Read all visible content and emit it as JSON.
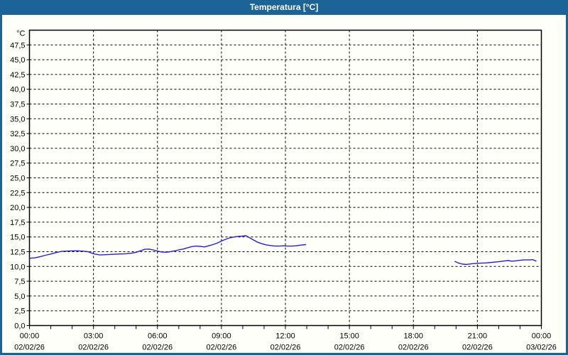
{
  "window": {
    "title": "Temperatura [°C]",
    "titlebar_color": "#1c6398",
    "border_color": "#1c6398"
  },
  "chart_data": {
    "type": "line",
    "title": "Temperatura [°C]",
    "y_axis_label": "°C",
    "xlabel": "",
    "ylabel": "°C",
    "x_range_hours": [
      0,
      24
    ],
    "ylim": [
      0,
      50
    ],
    "grid": "dashed-black",
    "legend_position": "none",
    "plot_bg": "#fffffa",
    "line_color": "#2222cc",
    "y_ticks": [
      {
        "value": 0,
        "label": "0,0"
      },
      {
        "value": 2.5,
        "label": "2,5"
      },
      {
        "value": 5,
        "label": "5,0"
      },
      {
        "value": 7.5,
        "label": "7,5"
      },
      {
        "value": 10,
        "label": "10,0"
      },
      {
        "value": 12.5,
        "label": "12,5"
      },
      {
        "value": 15,
        "label": "15,0"
      },
      {
        "value": 17.5,
        "label": "17,5"
      },
      {
        "value": 20,
        "label": "20,0"
      },
      {
        "value": 22.5,
        "label": "22,5"
      },
      {
        "value": 25,
        "label": "25,0"
      },
      {
        "value": 27.5,
        "label": "27,5"
      },
      {
        "value": 30,
        "label": "30,0"
      },
      {
        "value": 32.5,
        "label": "32,5"
      },
      {
        "value": 35,
        "label": "35,0"
      },
      {
        "value": 37.5,
        "label": "37,5"
      },
      {
        "value": 40,
        "label": "40,0"
      },
      {
        "value": 42.5,
        "label": "42,5"
      },
      {
        "value": 45,
        "label": "45,0"
      },
      {
        "value": 47.5,
        "label": "47,5"
      }
    ],
    "x_ticks": [
      {
        "hours": 0,
        "time": "00:00",
        "date": "02/02/26"
      },
      {
        "hours": 3,
        "time": "03:00",
        "date": "02/02/26"
      },
      {
        "hours": 6,
        "time": "06:00",
        "date": "02/02/26"
      },
      {
        "hours": 9,
        "time": "09:00",
        "date": "02/02/26"
      },
      {
        "hours": 12,
        "time": "12:00",
        "date": "02/02/26"
      },
      {
        "hours": 15,
        "time": "15:00",
        "date": "02/02/26"
      },
      {
        "hours": 18,
        "time": "18:00",
        "date": "02/02/26"
      },
      {
        "hours": 21,
        "time": "21:00",
        "date": "02/02/26"
      },
      {
        "hours": 24,
        "time": "00:00",
        "date": "03/02/26"
      }
    ],
    "x_minor_tick_every_hours": 1,
    "series": [
      {
        "name": "Temperatura",
        "color": "#2222cc",
        "segments": [
          [
            [
              0.0,
              11.4
            ],
            [
              0.25,
              11.45
            ],
            [
              0.5,
              11.65
            ],
            [
              0.75,
              11.9
            ],
            [
              1.0,
              12.1
            ],
            [
              1.25,
              12.35
            ],
            [
              1.5,
              12.55
            ],
            [
              1.75,
              12.6
            ],
            [
              2.0,
              12.65
            ],
            [
              2.25,
              12.65
            ],
            [
              2.5,
              12.6
            ],
            [
              2.75,
              12.5
            ],
            [
              3.0,
              12.15
            ],
            [
              3.3,
              11.95
            ],
            [
              3.6,
              12.0
            ],
            [
              3.9,
              12.05
            ],
            [
              4.2,
              12.1
            ],
            [
              4.5,
              12.15
            ],
            [
              4.8,
              12.25
            ],
            [
              5.0,
              12.4
            ],
            [
              5.2,
              12.65
            ],
            [
              5.4,
              12.9
            ],
            [
              5.6,
              12.95
            ],
            [
              5.8,
              12.8
            ],
            [
              6.0,
              12.6
            ],
            [
              6.2,
              12.45
            ],
            [
              6.4,
              12.4
            ],
            [
              6.6,
              12.5
            ],
            [
              6.8,
              12.65
            ],
            [
              7.0,
              12.8
            ],
            [
              7.2,
              12.95
            ],
            [
              7.4,
              13.15
            ],
            [
              7.6,
              13.35
            ],
            [
              7.8,
              13.45
            ],
            [
              8.0,
              13.4
            ],
            [
              8.2,
              13.3
            ],
            [
              8.4,
              13.5
            ],
            [
              8.6,
              13.7
            ],
            [
              8.8,
              13.95
            ],
            [
              9.0,
              14.3
            ],
            [
              9.2,
              14.6
            ],
            [
              9.4,
              14.85
            ],
            [
              9.6,
              15.0
            ],
            [
              9.8,
              15.1
            ],
            [
              10.0,
              15.15
            ],
            [
              10.15,
              15.2
            ],
            [
              10.3,
              14.9
            ],
            [
              10.5,
              14.5
            ],
            [
              10.7,
              14.1
            ],
            [
              10.9,
              13.85
            ],
            [
              11.1,
              13.65
            ],
            [
              11.3,
              13.55
            ],
            [
              11.5,
              13.45
            ],
            [
              11.7,
              13.45
            ],
            [
              11.9,
              13.5
            ],
            [
              12.1,
              13.45
            ],
            [
              12.3,
              13.45
            ],
            [
              12.5,
              13.5
            ],
            [
              12.7,
              13.6
            ],
            [
              12.95,
              13.7
            ]
          ],
          [
            [
              19.95,
              10.85
            ],
            [
              20.1,
              10.6
            ],
            [
              20.3,
              10.4
            ],
            [
              20.5,
              10.35
            ],
            [
              20.7,
              10.45
            ],
            [
              20.9,
              10.5
            ],
            [
              21.1,
              10.55
            ],
            [
              21.4,
              10.6
            ],
            [
              21.7,
              10.7
            ],
            [
              22.0,
              10.8
            ],
            [
              22.3,
              10.95
            ],
            [
              22.45,
              11.0
            ],
            [
              22.6,
              10.9
            ],
            [
              22.8,
              10.95
            ],
            [
              23.0,
              11.05
            ],
            [
              23.2,
              11.1
            ],
            [
              23.4,
              11.1
            ],
            [
              23.6,
              11.15
            ],
            [
              23.75,
              10.9
            ]
          ]
        ]
      }
    ]
  }
}
